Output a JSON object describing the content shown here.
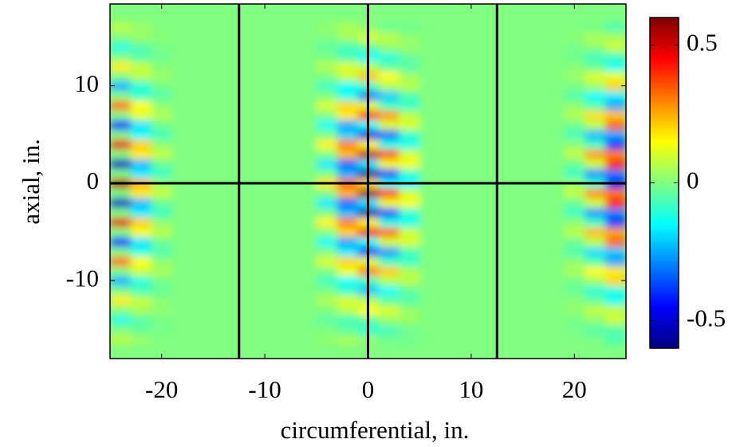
{
  "chart_data": {
    "type": "heatmap",
    "colormap": "jet",
    "xlabel": "circumferential, in.",
    "ylabel": "axial, in.",
    "xlim": [
      -25,
      25
    ],
    "ylim": [
      -18,
      18.4
    ],
    "xticks": [
      -20,
      -10,
      0,
      10,
      20
    ],
    "yticks": [
      -10,
      0,
      10
    ],
    "clim": [
      -0.6,
      0.6
    ],
    "colorbar_ticks": [
      -0.5,
      0,
      0.5
    ],
    "vlines": [
      -12.5,
      0,
      12.5
    ],
    "hlines": [
      0
    ],
    "line_color": "#000000",
    "x": [
      -24,
      -22,
      -20,
      -18,
      -16,
      -14,
      -12,
      -10,
      -8,
      -6,
      -4,
      -2,
      0,
      2,
      4,
      6,
      8,
      10,
      12,
      14,
      16,
      18,
      20,
      22,
      24
    ],
    "y": [
      -16,
      -15,
      -14,
      -13,
      -12,
      -11,
      -10,
      -9,
      -8,
      -7,
      -6,
      -5,
      -4,
      -3,
      -2,
      -1,
      0,
      1,
      2,
      3,
      4,
      5,
      6,
      7,
      8,
      9,
      10,
      11,
      12,
      13,
      14,
      15,
      16
    ],
    "z": [
      [
        0.07,
        0.03,
        0,
        0,
        0,
        0,
        0,
        0,
        0,
        0,
        0.02,
        0.05,
        0.02,
        -0.02,
        -0.02,
        0,
        0,
        0,
        0,
        0,
        0,
        0,
        0,
        -0.01,
        -0.06
      ],
      [
        0,
        -0.03,
        -0.01,
        0,
        0,
        0,
        0,
        0,
        0,
        0,
        0,
        -0.04,
        -0.1,
        -0.07,
        -0.02,
        0,
        0,
        0,
        0,
        0,
        0,
        0,
        -0.01,
        -0.05,
        -0.05
      ],
      [
        -0.12,
        -0.05,
        -0.01,
        0,
        0,
        0,
        0,
        0,
        0,
        0,
        -0.04,
        -0.07,
        -0.04,
        0.03,
        0.03,
        0,
        0,
        0,
        0,
        0,
        0,
        0,
        -0.01,
        0.02,
        0.09
      ],
      [
        0,
        0.05,
        0.02,
        0,
        0,
        0,
        0,
        0,
        0,
        0,
        0,
        0.07,
        0.15,
        0.11,
        0.03,
        0,
        0,
        0,
        0,
        0,
        0,
        0,
        0.02,
        0.08,
        0.08
      ],
      [
        0.17,
        0.08,
        0.01,
        0,
        0,
        0,
        0,
        0,
        0,
        0,
        0.06,
        0.11,
        0.06,
        -0.04,
        -0.05,
        0,
        0,
        0,
        0,
        0,
        0,
        0,
        0.01,
        -0.03,
        -0.14
      ],
      [
        0,
        -0.07,
        -0.03,
        0,
        0,
        0,
        0,
        0,
        0,
        0,
        0,
        -0.09,
        -0.22,
        -0.15,
        -0.04,
        0,
        0,
        0,
        0,
        0,
        0,
        0,
        -0.03,
        -0.11,
        -0.12
      ],
      [
        -0.24,
        -0.11,
        -0.01,
        0,
        0,
        0,
        0,
        0,
        0,
        0,
        -0.08,
        -0.15,
        -0.08,
        0.06,
        0.07,
        0,
        0,
        0,
        0,
        0,
        0,
        0,
        -0.01,
        0.04,
        0.2
      ],
      [
        0,
        0.09,
        0.05,
        0,
        0,
        0,
        0,
        0,
        0,
        0,
        0,
        0.13,
        0.3,
        0.21,
        0.06,
        0,
        0,
        0,
        0,
        0,
        0,
        0,
        0.05,
        0.15,
        0.17
      ],
      [
        0.32,
        0.15,
        0.02,
        0,
        0,
        0,
        0,
        0,
        0,
        0,
        0.11,
        0.2,
        0.11,
        -0.08,
        -0.09,
        0,
        0,
        0,
        0,
        0,
        0,
        0,
        0.02,
        -0.06,
        -0.26
      ],
      [
        0,
        -0.12,
        -0.06,
        0,
        0,
        0,
        0,
        0,
        0,
        0,
        0,
        -0.17,
        -0.39,
        -0.27,
        -0.07,
        0,
        0,
        0,
        0,
        0,
        0,
        0,
        -0.06,
        -0.19,
        -0.22
      ],
      [
        -0.41,
        -0.18,
        -0.02,
        0,
        0,
        0,
        0,
        0,
        0,
        0,
        -0.14,
        -0.26,
        -0.14,
        0.1,
        0.11,
        0,
        0,
        0,
        0,
        0,
        0,
        0,
        -0.02,
        0.07,
        0.33
      ],
      [
        0,
        0.14,
        0.07,
        0,
        0,
        0,
        0,
        0,
        0,
        0,
        0,
        0.2,
        0.47,
        0.33,
        0.09,
        0,
        0,
        0,
        0,
        0,
        0,
        0,
        0.07,
        0.23,
        0.26
      ],
      [
        0.48,
        0.21,
        0.02,
        0,
        0,
        0,
        0,
        0,
        0,
        0,
        0.16,
        0.3,
        0.16,
        -0.12,
        -0.13,
        0,
        0,
        0,
        0,
        0,
        0,
        0,
        0.02,
        -0.08,
        -0.39
      ],
      [
        0,
        -0.17,
        -0.08,
        0,
        0,
        0,
        0,
        0,
        0,
        0,
        0,
        -0.23,
        -0.53,
        -0.37,
        -0.1,
        0,
        0,
        0,
        0,
        0,
        0,
        0,
        -0.08,
        -0.27,
        -0.3
      ],
      [
        -0.52,
        -0.23,
        -0.03,
        0,
        0,
        0,
        0,
        0,
        0,
        0,
        -0.17,
        -0.33,
        -0.18,
        0.13,
        0.14,
        0,
        0,
        0,
        0,
        0,
        0,
        0,
        -0.03,
        0.09,
        0.42
      ],
      [
        0,
        0.17,
        0.08,
        0,
        0,
        0,
        0,
        0,
        0,
        0,
        0,
        0.24,
        0.56,
        0.39,
        0.1,
        0,
        0,
        0,
        0,
        0,
        0,
        0,
        0.08,
        0.28,
        0.31
      ],
      [
        0.54,
        0.24,
        0.03,
        0,
        0,
        0,
        0,
        0,
        0,
        0,
        0.18,
        0.34,
        0.19,
        -0.13,
        -0.15,
        0,
        0,
        0,
        0,
        0,
        0,
        0,
        0.03,
        -0.09,
        -0.44
      ],
      [
        0,
        -0.17,
        -0.08,
        0,
        0,
        0,
        0,
        0,
        0,
        0,
        0,
        -0.24,
        -0.56,
        -0.39,
        -0.1,
        0,
        0,
        0,
        0,
        0,
        0,
        0,
        -0.08,
        -0.28,
        -0.31
      ],
      [
        -0.52,
        -0.23,
        -0.03,
        0,
        0,
        0,
        0,
        0,
        0,
        0,
        -0.17,
        -0.33,
        -0.18,
        0.13,
        0.14,
        0,
        0,
        0,
        0,
        0,
        0,
        0,
        -0.03,
        0.09,
        0.42
      ],
      [
        0,
        0.17,
        0.08,
        0,
        0,
        0,
        0,
        0,
        0,
        0,
        0,
        0.23,
        0.53,
        0.37,
        0.1,
        0,
        0,
        0,
        0,
        0,
        0,
        0,
        0.08,
        0.27,
        0.3
      ],
      [
        0.48,
        0.21,
        0.02,
        0,
        0,
        0,
        0,
        0,
        0,
        0,
        0.16,
        0.3,
        0.16,
        -0.12,
        -0.13,
        0,
        0,
        0,
        0,
        0,
        0,
        0,
        0.02,
        -0.08,
        -0.39
      ],
      [
        0,
        -0.14,
        -0.07,
        0,
        0,
        0,
        0,
        0,
        0,
        0,
        0,
        -0.2,
        -0.47,
        -0.33,
        -0.09,
        0,
        0,
        0,
        0,
        0,
        0,
        0,
        -0.07,
        -0.23,
        -0.26
      ],
      [
        -0.41,
        -0.18,
        -0.02,
        0,
        0,
        0,
        0,
        0,
        0,
        0,
        -0.14,
        -0.26,
        -0.14,
        0.1,
        0.11,
        0,
        0,
        0,
        0,
        0,
        0,
        0,
        -0.02,
        0.07,
        0.33
      ],
      [
        0,
        0.12,
        0.06,
        0,
        0,
        0,
        0,
        0,
        0,
        0,
        0,
        0.17,
        0.39,
        0.27,
        0.07,
        0,
        0,
        0,
        0,
        0,
        0,
        0,
        0.06,
        0.19,
        0.22
      ],
      [
        0.32,
        0.15,
        0.02,
        0,
        0,
        0,
        0,
        0,
        0,
        0,
        0.11,
        0.2,
        0.11,
        -0.08,
        -0.09,
        0,
        0,
        0,
        0,
        0,
        0,
        0,
        0.02,
        -0.06,
        -0.26
      ],
      [
        0,
        -0.09,
        -0.05,
        0,
        0,
        0,
        0,
        0,
        0,
        0,
        0,
        -0.13,
        -0.3,
        -0.21,
        -0.06,
        0,
        0,
        0,
        0,
        0,
        0,
        0,
        -0.05,
        -0.15,
        -0.17
      ],
      [
        -0.24,
        -0.11,
        -0.01,
        0,
        0,
        0,
        0,
        0,
        0,
        0,
        -0.08,
        -0.15,
        -0.08,
        0.06,
        0.07,
        0,
        0,
        0,
        0,
        0,
        0,
        0,
        -0.01,
        0.04,
        0.2
      ],
      [
        0,
        0.07,
        0.03,
        0,
        0,
        0,
        0,
        0,
        0,
        0,
        0,
        0.09,
        0.22,
        0.15,
        0.04,
        0,
        0,
        0,
        0,
        0,
        0,
        0,
        0.03,
        0.11,
        0.12
      ],
      [
        0.17,
        0.08,
        0.01,
        0,
        0,
        0,
        0,
        0,
        0,
        0,
        0.06,
        0.11,
        0.06,
        -0.04,
        -0.05,
        0,
        0,
        0,
        0,
        0,
        0,
        0,
        0.01,
        -0.03,
        -0.14
      ],
      [
        0,
        -0.05,
        -0.02,
        0,
        0,
        0,
        0,
        0,
        0,
        0,
        0,
        -0.07,
        -0.15,
        -0.11,
        -0.03,
        0,
        0,
        0,
        0,
        0,
        0,
        0,
        -0.02,
        -0.08,
        -0.08
      ],
      [
        -0.12,
        -0.05,
        -0.01,
        0,
        0,
        0,
        0,
        0,
        0,
        0,
        -0.04,
        -0.07,
        -0.04,
        0.03,
        0.03,
        0,
        0,
        0,
        0,
        0,
        0,
        0,
        -0.01,
        0.02,
        0.09
      ],
      [
        0,
        0.03,
        0.01,
        0,
        0,
        0,
        0,
        0,
        0,
        0,
        0,
        0.04,
        0.1,
        0.07,
        0.02,
        0,
        0,
        0,
        0,
        0,
        0,
        0,
        0.01,
        0.05,
        0.05
      ],
      [
        0.07,
        0.03,
        0,
        0,
        0,
        0,
        0,
        0,
        0,
        0,
        0.02,
        0.05,
        0.02,
        -0.02,
        -0.02,
        0,
        0,
        0,
        0,
        0,
        0,
        0,
        0,
        -0.01,
        -0.06
      ]
    ]
  }
}
